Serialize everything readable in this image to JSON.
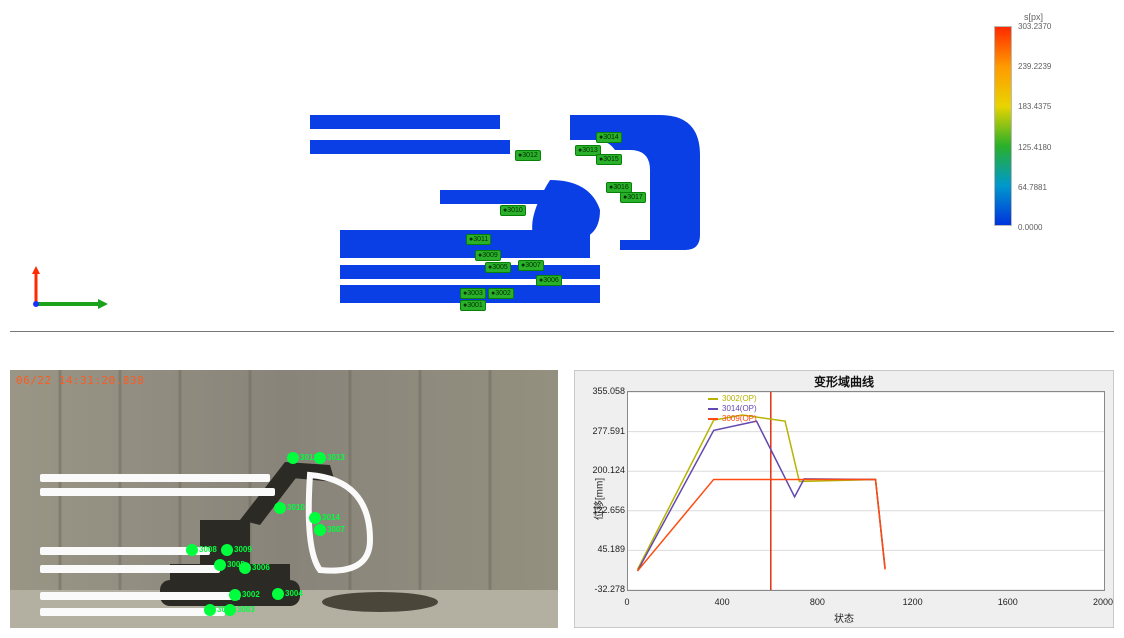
{
  "top": {
    "colorbar": {
      "title": "s[px]",
      "labels": [
        "303.2370",
        "239.2239",
        "183.4375",
        "125.4180",
        "64.7881",
        "0.0000"
      ],
      "stops": [
        "#ff2a00",
        "#ff9a00",
        "#e8d400",
        "#2ab02a",
        "#0099cc",
        "#0033dd"
      ]
    },
    "markers": [
      {
        "id": "3012",
        "x": 215,
        "y": 50
      },
      {
        "id": "3013",
        "x": 275,
        "y": 45
      },
      {
        "id": "3014",
        "x": 296,
        "y": 32
      },
      {
        "id": "3015",
        "x": 296,
        "y": 54
      },
      {
        "id": "3016",
        "x": 306,
        "y": 82
      },
      {
        "id": "3017",
        "x": 320,
        "y": 92
      },
      {
        "id": "3010",
        "x": 200,
        "y": 105
      },
      {
        "id": "3011",
        "x": 166,
        "y": 134
      },
      {
        "id": "3009",
        "x": 175,
        "y": 150
      },
      {
        "id": "3005",
        "x": 185,
        "y": 162
      },
      {
        "id": "3007",
        "x": 218,
        "y": 160
      },
      {
        "id": "3006",
        "x": 236,
        "y": 175
      },
      {
        "id": "3002",
        "x": 188,
        "y": 188
      },
      {
        "id": "3001",
        "x": 160,
        "y": 200
      },
      {
        "id": "3003",
        "x": 160,
        "y": 188
      }
    ]
  },
  "camera": {
    "timestamp": "06/22 14:31:20.838",
    "markers": [
      {
        "id": "3012",
        "x": 283,
        "y": 88
      },
      {
        "id": "3013",
        "x": 310,
        "y": 88
      },
      {
        "id": "3014",
        "x": 305,
        "y": 148
      },
      {
        "id": "3007",
        "x": 310,
        "y": 160
      },
      {
        "id": "3010",
        "x": 270,
        "y": 138
      },
      {
        "id": "3009",
        "x": 217,
        "y": 180
      },
      {
        "id": "3008",
        "x": 182,
        "y": 180
      },
      {
        "id": "3005",
        "x": 210,
        "y": 195
      },
      {
        "id": "3006",
        "x": 235,
        "y": 198
      },
      {
        "id": "3004",
        "x": 268,
        "y": 224
      },
      {
        "id": "3002",
        "x": 225,
        "y": 225
      },
      {
        "id": "3001",
        "x": 200,
        "y": 240
      },
      {
        "id": "3003",
        "x": 220,
        "y": 240
      }
    ]
  },
  "chart": {
    "title": "变形域曲线",
    "ylabel": "位移[mm]",
    "xlabel": "状态",
    "xlim": [
      0,
      2000
    ],
    "ylim": [
      -32.278,
      355.058
    ],
    "yticks": [
      "355.058",
      "277.591",
      "200.124",
      "122.656",
      "45.189",
      "-32.278"
    ],
    "xticks": [
      "0",
      "400",
      "800",
      "1200",
      "1600",
      "2000"
    ],
    "cursor_x": 600,
    "legend": [
      {
        "label": "3002(OP)",
        "color": "#b7b300"
      },
      {
        "label": "3014(OP)",
        "color": "#6348b0"
      },
      {
        "label": "3009(OP)",
        "color": "#ff4a10"
      }
    ],
    "series": [
      {
        "color": "#b7b300",
        "points": [
          [
            40,
            8
          ],
          [
            360,
            300
          ],
          [
            480,
            310
          ],
          [
            660,
            298
          ],
          [
            720,
            180
          ],
          [
            1040,
            184
          ],
          [
            1080,
            12
          ]
        ]
      },
      {
        "color": "#6348b0",
        "points": [
          [
            40,
            5
          ],
          [
            360,
            280
          ],
          [
            540,
            298
          ],
          [
            700,
            150
          ],
          [
            740,
            185
          ],
          [
            1040,
            184
          ],
          [
            1080,
            10
          ]
        ]
      },
      {
        "color": "#ff4a10",
        "points": [
          [
            40,
            5
          ],
          [
            360,
            184
          ],
          [
            740,
            184
          ],
          [
            1040,
            184
          ],
          [
            1080,
            8
          ]
        ]
      }
    ]
  }
}
